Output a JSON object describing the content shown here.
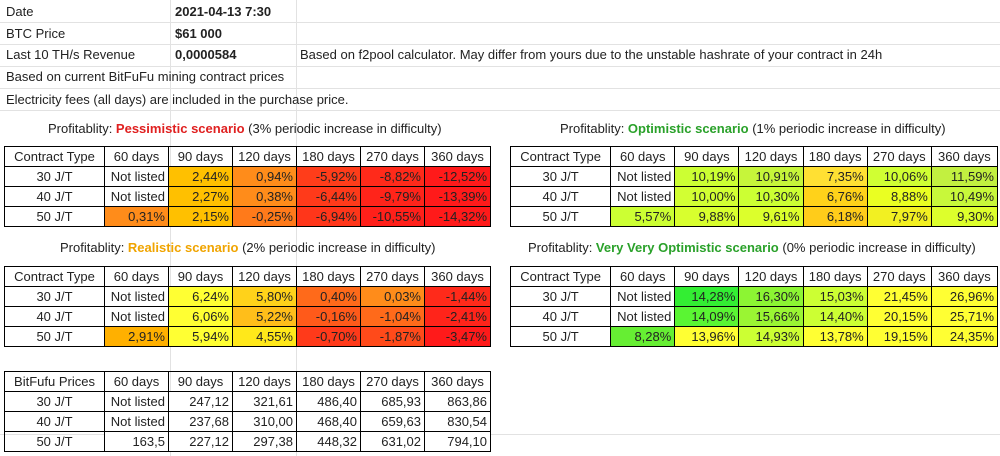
{
  "info": {
    "date_label": "Date",
    "date_value": "2021-04-13 7:30",
    "btc_label": "BTC Price",
    "btc_value": "$61 000",
    "revenue_label": "Last 10 TH/s Revenue",
    "revenue_value": "0,0000584",
    "revenue_note": "Based on f2pool calculator. May differ from yours due to the unstable hashrate of your contract in 24h",
    "note1": "Based on current BitFuFu mining contract prices",
    "note2": "Electricity fees (all days) are included in the purchase price."
  },
  "headers": [
    "60 days",
    "90 days",
    "120 days",
    "180 days",
    "270 days",
    "360 days"
  ],
  "prefix": "Profitablity: ",
  "tables": {
    "pessimistic": {
      "title_scenario": "Pessimistic scenario",
      "title_rest": " (3% periodic increase in difficulty)",
      "corner": "Contract Type",
      "rows": [
        {
          "label": "30 J/T",
          "cells": [
            "Not listed",
            "2,44%",
            "0,94%",
            "-5,92%",
            "-8,82%",
            "-12,52%"
          ],
          "colors": [
            "#ffffff",
            "#ffc000",
            "#ff8c1a",
            "#ff3d1a",
            "#ff2a1a",
            "#ff1a1a"
          ]
        },
        {
          "label": "40 J/T",
          "cells": [
            "Not listed",
            "2,27%",
            "0,38%",
            "-6,44%",
            "-9,79%",
            "-13,39%"
          ],
          "colors": [
            "#ffffff",
            "#ffc000",
            "#ff8c1a",
            "#ff3a1a",
            "#ff241a",
            "#ff1a1a"
          ]
        },
        {
          "label": "50 J/T",
          "cells": [
            "0,31%",
            "2,15%",
            "-0,25%",
            "-6,94%",
            "-10,55%",
            "-14,32%"
          ],
          "colors": [
            "#ff8c1a",
            "#ffc000",
            "#ff7a1a",
            "#ff361a",
            "#ff201a",
            "#ff1a1a"
          ]
        }
      ]
    },
    "optimistic": {
      "title_scenario": "Optimistic scenario",
      "title_rest": " (1% periodic increase in difficulty)",
      "corner": "Contract Type",
      "rows": [
        {
          "label": "30 J/T",
          "cells": [
            "Not listed",
            "10,19%",
            "10,91%",
            "7,35%",
            "10,06%",
            "11,59%"
          ],
          "colors": [
            "#ffffff",
            "#ccff33",
            "#c6f53a",
            "#ffe033",
            "#d0ff33",
            "#c2f040"
          ]
        },
        {
          "label": "40 J/T",
          "cells": [
            "Not listed",
            "10,00%",
            "10,30%",
            "6,76%",
            "8,88%",
            "10,49%"
          ],
          "colors": [
            "#ffffff",
            "#d2ff33",
            "#ccff33",
            "#ffd21a",
            "#eaff22",
            "#c8f83a"
          ]
        },
        {
          "label": "50 J/T",
          "cells": [
            "5,57%",
            "9,88%",
            "9,61%",
            "6,18%",
            "7,97%",
            "9,30%"
          ],
          "colors": [
            "#ccff33",
            "#d8ff2e",
            "#dcff2c",
            "#ffcc1a",
            "#f2f022",
            "#ddff2c"
          ]
        }
      ]
    },
    "realistic": {
      "title_scenario": "Realistic scenario",
      "title_rest": " (2% periodic increase in difficulty)",
      "corner": "Contract Type",
      "rows": [
        {
          "label": "30 J/T",
          "cells": [
            "Not listed",
            "6,24%",
            "5,80%",
            "0,40%",
            "0,03%",
            "-1,44%"
          ],
          "colors": [
            "#ffffff",
            "#ffff33",
            "#ffd21a",
            "#ff6a1a",
            "#ff8c1a",
            "#ff2a1a"
          ]
        },
        {
          "label": "40 J/T",
          "cells": [
            "Not listed",
            "6,06%",
            "5,22%",
            "-0,16%",
            "-1,04%",
            "-2,41%"
          ],
          "colors": [
            "#ffffff",
            "#ffff33",
            "#ffbe1a",
            "#ff5a1a",
            "#ff6a1a",
            "#ff241a"
          ]
        },
        {
          "label": "50 J/T",
          "cells": [
            "2,91%",
            "5,94%",
            "4,55%",
            "-0,70%",
            "-1,87%",
            "-3,47%"
          ],
          "colors": [
            "#ffb000",
            "#ffff33",
            "#ffe81a",
            "#ff3a1a",
            "#ff4a1a",
            "#ff1a1a"
          ]
        }
      ]
    },
    "very_optimistic": {
      "title_scenario": "Very Very Optimistic scenario",
      "title_rest": " (0% periodic increase in difficulty)",
      "corner": "Contract Type",
      "rows": [
        {
          "label": "30 J/T",
          "cells": [
            "Not listed",
            "14,28%",
            "16,30%",
            "15,03%",
            "21,45%",
            "26,96%"
          ],
          "colors": [
            "#ffffff",
            "#33ee33",
            "#8cf533",
            "#ccff33",
            "#ffff33",
            "#ffff33"
          ]
        },
        {
          "label": "40 J/T",
          "cells": [
            "Not listed",
            "14,09%",
            "15,66%",
            "14,40%",
            "20,15%",
            "25,71%"
          ],
          "colors": [
            "#ffffff",
            "#5af533",
            "#9af533",
            "#ccff33",
            "#ffff33",
            "#ffff33"
          ]
        },
        {
          "label": "50 J/T",
          "cells": [
            "8,28%",
            "13,96%",
            "14,93%",
            "13,78%",
            "19,15%",
            "24,35%"
          ],
          "colors": [
            "#66ee33",
            "#ffff33",
            "#ccff33",
            "#ffff33",
            "#ffff33",
            "#ffff33"
          ]
        }
      ]
    },
    "prices": {
      "corner": "BitFufu Prices",
      "rows": [
        {
          "label": "30 J/T",
          "cells": [
            "Not listed",
            "247,12",
            "321,61",
            "486,40",
            "685,93",
            "863,86"
          ],
          "colors": [
            "#ffffff",
            "#ffffff",
            "#ffffff",
            "#ffffff",
            "#ffffff",
            "#ffffff"
          ]
        },
        {
          "label": "40 J/T",
          "cells": [
            "Not listed",
            "237,68",
            "310,00",
            "468,40",
            "659,63",
            "830,54"
          ],
          "colors": [
            "#ffffff",
            "#ffffff",
            "#ffffff",
            "#ffffff",
            "#ffffff",
            "#ffffff"
          ]
        },
        {
          "label": "50 J/T",
          "cells": [
            "163,5",
            "227,12",
            "297,38",
            "448,32",
            "631,02",
            "794,10"
          ],
          "colors": [
            "#ffffff",
            "#ffffff",
            "#ffffff",
            "#ffffff",
            "#ffffff",
            "#ffffff"
          ]
        }
      ]
    }
  }
}
